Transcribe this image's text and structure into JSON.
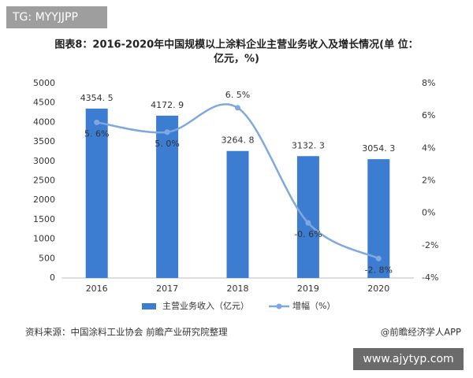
{
  "tag": "TG: MYYJJPP",
  "source": "资料来源：中国涂料工业协会 前瞻产业研究院整理",
  "credit": "@前瞻经济学人APP",
  "watermark": "www.ajytyp.com",
  "chart_data": {
    "type": "bar-line",
    "title": "图表8：2016-2020年中国规模以上涂料企业主营业务收入及增长情况(单 位：",
    "subtitle": "亿元，%)",
    "categories": [
      "2016",
      "2017",
      "2018",
      "2019",
      "2020"
    ],
    "series": [
      {
        "name": "主营业务收入（亿元）",
        "type": "bar",
        "color": "#3c7dd2",
        "values": [
          4354.5,
          4172.9,
          3264.8,
          3132.3,
          3054.3
        ],
        "value_labels": [
          "4354. 5",
          "4172. 9",
          "3264. 8",
          "3132. 3",
          "3054. 3"
        ]
      },
      {
        "name": "增幅（%）",
        "type": "line",
        "axis": "y2",
        "color": "#7ea8de",
        "values": [
          5.6,
          5.0,
          6.5,
          -0.6,
          -2.8
        ],
        "value_labels": [
          "5. 6%",
          "5. 0%",
          "6. 5%",
          "-0. 6%",
          "-2. 8%"
        ]
      }
    ],
    "ylim": [
      0,
      5000
    ],
    "yticks": [
      0,
      500,
      1000,
      1500,
      2000,
      2500,
      3000,
      3500,
      4000,
      4500,
      5000
    ],
    "y2lim": [
      -4,
      8
    ],
    "y2ticks": [
      {
        "value": -4,
        "label": "-4%"
      },
      {
        "value": -2,
        "label": "-2%"
      },
      {
        "value": 0,
        "label": "0%"
      },
      {
        "value": 2,
        "label": "2%"
      },
      {
        "value": 4,
        "label": "4%"
      },
      {
        "value": 6,
        "label": "6%"
      },
      {
        "value": 8,
        "label": "8%"
      }
    ],
    "legend": "bottom"
  }
}
